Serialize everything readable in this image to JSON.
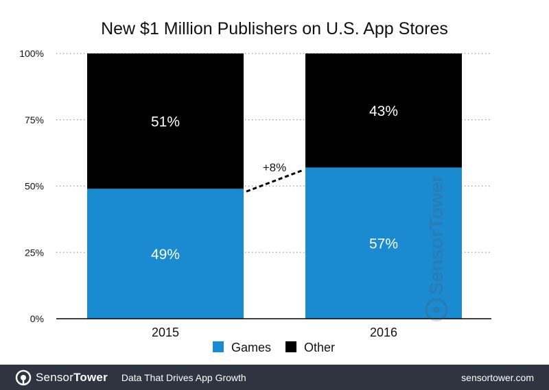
{
  "chart_data": {
    "type": "bar",
    "stacked": true,
    "percent_stacked": true,
    "title": "New $1 Million Publishers on U.S. App Stores",
    "categories": [
      "2015",
      "2016"
    ],
    "series": [
      {
        "name": "Games",
        "values": [
          49,
          57
        ],
        "labels": [
          "49%",
          "57%"
        ],
        "color": "#1a8bd0"
      },
      {
        "name": "Other",
        "values": [
          51,
          43
        ],
        "labels": [
          "51%",
          "43%"
        ],
        "color": "#000000"
      }
    ],
    "ylim": [
      0,
      100
    ],
    "y_ticks": [
      "0%",
      "25%",
      "50%",
      "75%",
      "100%"
    ],
    "grid": true,
    "legend_position": "bottom",
    "annotation": {
      "text": "+8%",
      "style": "dashed connector between Games tops"
    }
  },
  "watermark": {
    "text": "SensorTower"
  },
  "footer": {
    "brand_part1": "Sensor",
    "brand_part2": "Tower",
    "tagline": "Data That Drives App Growth",
    "url": "sensortower.com",
    "background": "#2e3440"
  }
}
